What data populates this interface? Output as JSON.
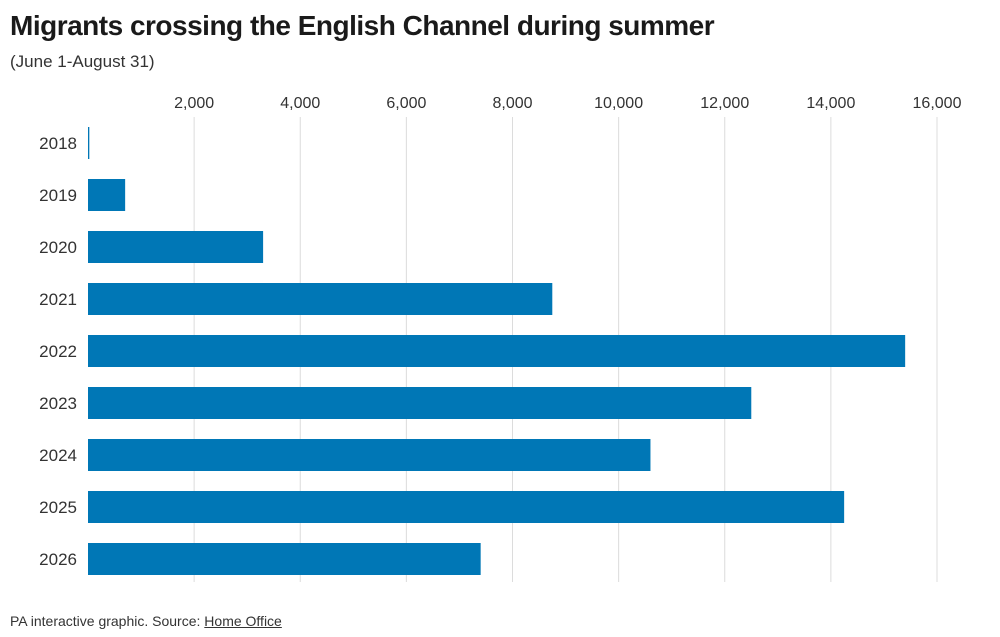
{
  "header": {
    "title": "Migrants crossing the English Channel during summer",
    "subtitle": "(June 1-August 31)"
  },
  "footer": {
    "credit": "PA interactive graphic. Source: ",
    "source_link": "Home Office"
  },
  "colors": {
    "bar": "#0077b6",
    "grid": "#dcdcdc"
  },
  "chart_data": {
    "type": "bar",
    "orientation": "horizontal",
    "title": "Migrants crossing the English Channel during summer",
    "subtitle": "(June 1-August 31)",
    "xlabel": "",
    "ylabel": "",
    "categories": [
      "2018",
      "2019",
      "2020",
      "2021",
      "2022",
      "2023",
      "2024",
      "2025",
      "2026"
    ],
    "values": [
      25,
      700,
      3300,
      8750,
      15400,
      12500,
      10600,
      14250,
      7400
    ],
    "xlim": [
      0,
      16000
    ],
    "xticks": [
      2000,
      4000,
      6000,
      8000,
      10000,
      12000,
      14000,
      16000
    ],
    "xtick_labels": [
      "2,000",
      "4,000",
      "6,000",
      "8,000",
      "10,000",
      "12,000",
      "14,000",
      "16,000"
    ],
    "axis_position": "top",
    "grid": true,
    "legend": "none"
  }
}
